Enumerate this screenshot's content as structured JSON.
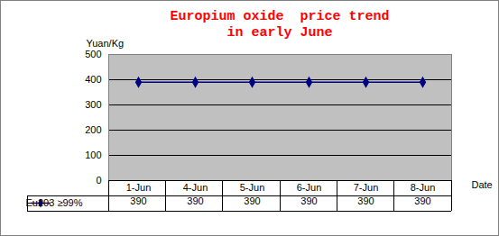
{
  "chart_data": {
    "type": "line",
    "title": "Europium oxide  price trend\nin early June",
    "y_label": "Yuan/Kg",
    "x_label": "Date",
    "categories": [
      "1-Jun",
      "4-Jun",
      "5-Jun",
      "6-Jun",
      "7-Jun",
      "8-Jun"
    ],
    "series": [
      {
        "name": "Eu203 ≥99%",
        "color": "#000080",
        "marker": "diamond",
        "values": [
          390,
          390,
          390,
          390,
          390,
          390
        ]
      }
    ],
    "ylim": [
      0,
      500
    ],
    "yticks": [
      0,
      100,
      200,
      300,
      400,
      500
    ],
    "grid": true,
    "data_labels": true
  }
}
